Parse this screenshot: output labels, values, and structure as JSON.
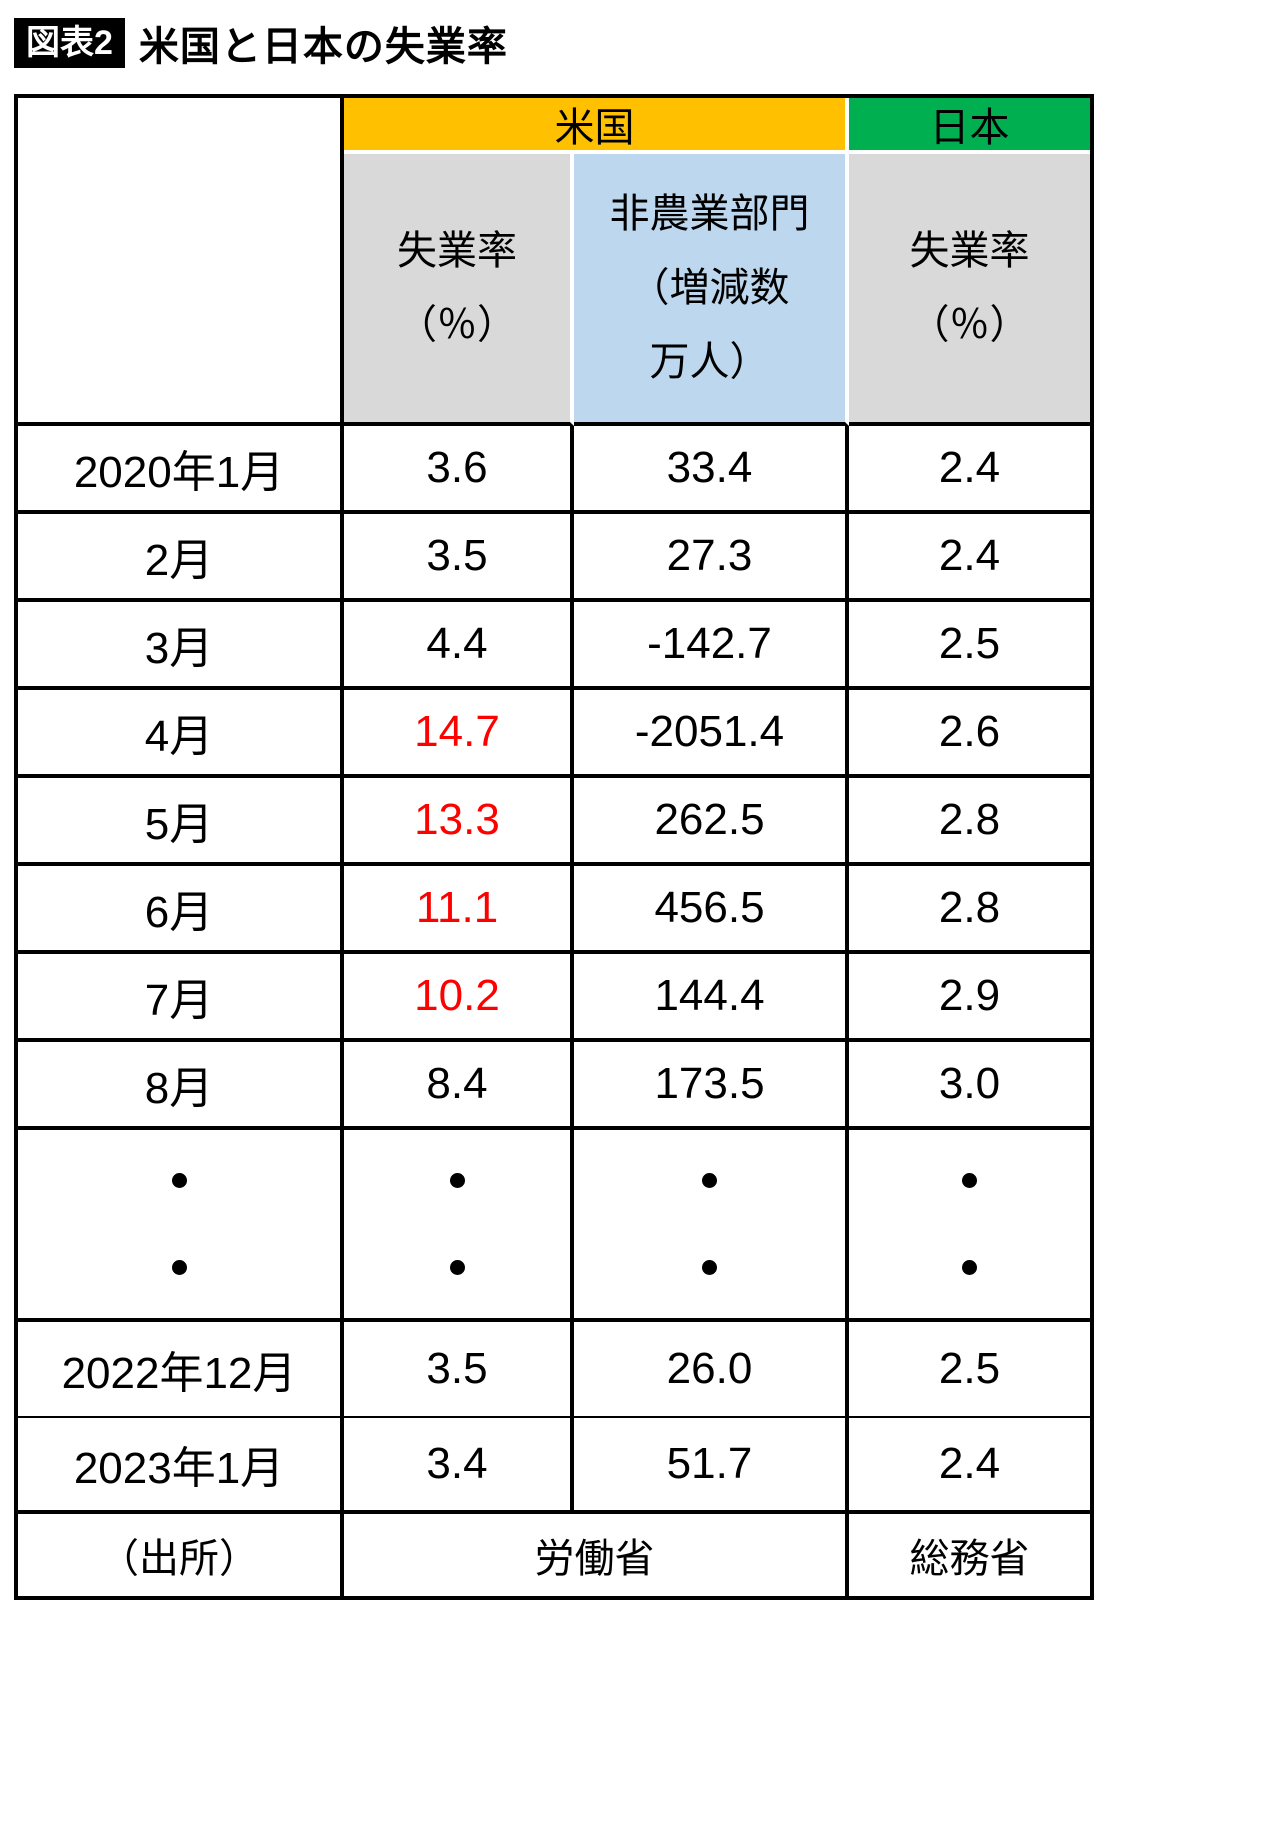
{
  "figure": {
    "badge": "図表2",
    "title": "米国と日本の失業率"
  },
  "header": {
    "us_group": "米国",
    "jp_group": "日本",
    "us_rate_lines": [
      "失業率",
      "（％）"
    ],
    "nonfarm_lines": [
      "非農業部門",
      "（増減数",
      "万人）"
    ],
    "jp_rate_lines": [
      "失業率",
      "（％）"
    ]
  },
  "rows": [
    {
      "label": "2020年1月",
      "us_rate": "3.6",
      "nonfarm": "33.4",
      "jp_rate": "2.4",
      "highlight": false
    },
    {
      "label": "2月",
      "us_rate": "3.5",
      "nonfarm": "27.3",
      "jp_rate": "2.4",
      "highlight": false
    },
    {
      "label": "3月",
      "us_rate": "4.4",
      "nonfarm": "-142.7",
      "jp_rate": "2.5",
      "highlight": false
    },
    {
      "label": "4月",
      "us_rate": "14.7",
      "nonfarm": "-2051.4",
      "jp_rate": "2.6",
      "highlight": true
    },
    {
      "label": "5月",
      "us_rate": "13.3",
      "nonfarm": "262.5",
      "jp_rate": "2.8",
      "highlight": true
    },
    {
      "label": "6月",
      "us_rate": "11.1",
      "nonfarm": "456.5",
      "jp_rate": "2.8",
      "highlight": true
    },
    {
      "label": "7月",
      "us_rate": "10.2",
      "nonfarm": "144.4",
      "jp_rate": "2.9",
      "highlight": true
    },
    {
      "label": "8月",
      "us_rate": "8.4",
      "nonfarm": "173.5",
      "jp_rate": "3.0",
      "highlight": false
    },
    {
      "label": "2022年12月",
      "us_rate": "3.5",
      "nonfarm": "26.0",
      "jp_rate": "2.5",
      "highlight": false
    },
    {
      "label": "2023年1月",
      "us_rate": "3.4",
      "nonfarm": "51.7",
      "jp_rate": "2.4",
      "highlight": false
    }
  ],
  "ellipsis": {
    "symbol": "・",
    "dots_per_column": 2
  },
  "source": {
    "label": "（出所）",
    "us": "労働省",
    "jp": "総務省"
  },
  "colors": {
    "us_header": "#FFC000",
    "jp_header": "#00B050",
    "rate_header_bg": "#D9D9D9",
    "nonfarm_header_bg": "#BDD7EE",
    "highlight_red": "#FF0000",
    "border": "#000000"
  },
  "chart_data": {
    "type": "table",
    "title": "米国と日本の失業率",
    "column_groups": [
      {
        "label": "米国",
        "columns": [
          "失業率（％）",
          "非農業部門（増減数 万人）"
        ]
      },
      {
        "label": "日本",
        "columns": [
          "失業率（％）"
        ]
      }
    ],
    "rows": [
      {
        "period": "2020年1月",
        "us_unemployment_pct": 3.6,
        "us_nonfarm_change_10k": 33.4,
        "jp_unemployment_pct": 2.4
      },
      {
        "period": "2020年2月",
        "us_unemployment_pct": 3.5,
        "us_nonfarm_change_10k": 27.3,
        "jp_unemployment_pct": 2.4
      },
      {
        "period": "2020年3月",
        "us_unemployment_pct": 4.4,
        "us_nonfarm_change_10k": -142.7,
        "jp_unemployment_pct": 2.5
      },
      {
        "period": "2020年4月",
        "us_unemployment_pct": 14.7,
        "us_nonfarm_change_10k": -2051.4,
        "jp_unemployment_pct": 2.6
      },
      {
        "period": "2020年5月",
        "us_unemployment_pct": 13.3,
        "us_nonfarm_change_10k": 262.5,
        "jp_unemployment_pct": 2.8
      },
      {
        "period": "2020年6月",
        "us_unemployment_pct": 11.1,
        "us_nonfarm_change_10k": 456.5,
        "jp_unemployment_pct": 2.8
      },
      {
        "period": "2020年7月",
        "us_unemployment_pct": 10.2,
        "us_nonfarm_change_10k": 144.4,
        "jp_unemployment_pct": 2.9
      },
      {
        "period": "2020年8月",
        "us_unemployment_pct": 8.4,
        "us_nonfarm_change_10k": 173.5,
        "jp_unemployment_pct": 3.0
      },
      {
        "period": "・・",
        "us_unemployment_pct": null,
        "us_nonfarm_change_10k": null,
        "jp_unemployment_pct": null
      },
      {
        "period": "2022年12月",
        "us_unemployment_pct": 3.5,
        "us_nonfarm_change_10k": 26.0,
        "jp_unemployment_pct": 2.5
      },
      {
        "period": "2023年1月",
        "us_unemployment_pct": 3.4,
        "us_nonfarm_change_10k": 51.7,
        "jp_unemployment_pct": 2.4
      }
    ],
    "red_highlighted_us_rates": [
      14.7,
      13.3,
      11.1,
      10.2
    ],
    "sources": {
      "米国": "労働省",
      "日本": "総務省"
    }
  }
}
